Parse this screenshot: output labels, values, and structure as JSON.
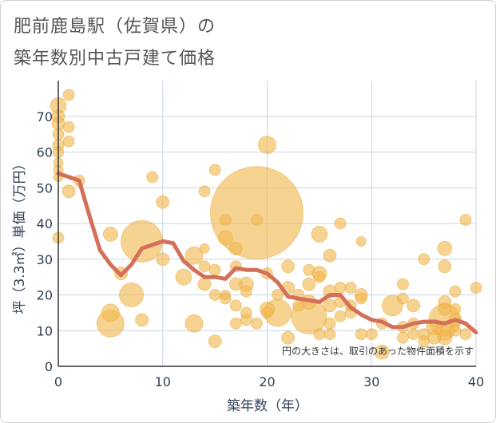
{
  "chart_data": {
    "type": "scatter",
    "title_lines": [
      "肥前鹿島駅（佐賀県）の",
      "築年数別中古戸建て価格"
    ],
    "xlabel": "築年数（年）",
    "ylabel": "坪（3.3㎡）単価（万円）",
    "annotation": "円の大きさは、取引のあった物件面積を示す",
    "xlim": [
      0,
      40
    ],
    "ylim": [
      0,
      80
    ],
    "x_ticks": [
      0,
      10,
      20,
      30,
      40
    ],
    "y_ticks": [
      0,
      10,
      20,
      30,
      40,
      50,
      60,
      70
    ],
    "grid": true,
    "colors": {
      "bubble": "#f2b84f",
      "line": "#d4705a",
      "grid": "#c9d6e3",
      "axis": "#333333"
    },
    "points": [
      {
        "x": 0,
        "y": 73,
        "s": 10
      },
      {
        "x": 0,
        "y": 70,
        "s": 8
      },
      {
        "x": 0,
        "y": 68,
        "s": 8
      },
      {
        "x": 0,
        "y": 65,
        "s": 7
      },
      {
        "x": 0,
        "y": 62,
        "s": 7
      },
      {
        "x": 0,
        "y": 60,
        "s": 7
      },
      {
        "x": 0,
        "y": 57,
        "s": 6
      },
      {
        "x": 0,
        "y": 55,
        "s": 6
      },
      {
        "x": 0,
        "y": 53,
        "s": 6
      },
      {
        "x": 0,
        "y": 36,
        "s": 7
      },
      {
        "x": 1,
        "y": 76,
        "s": 7
      },
      {
        "x": 1,
        "y": 67,
        "s": 7
      },
      {
        "x": 1,
        "y": 63,
        "s": 7
      },
      {
        "x": 1,
        "y": 49,
        "s": 8
      },
      {
        "x": 2,
        "y": 52,
        "s": 7
      },
      {
        "x": 5,
        "y": 37,
        "s": 9
      },
      {
        "x": 5,
        "y": 15,
        "s": 11
      },
      {
        "x": 5,
        "y": 12,
        "s": 17
      },
      {
        "x": 6,
        "y": 26,
        "s": 8
      },
      {
        "x": 7,
        "y": 20,
        "s": 15
      },
      {
        "x": 8,
        "y": 35,
        "s": 26
      },
      {
        "x": 8,
        "y": 13,
        "s": 8
      },
      {
        "x": 9,
        "y": 53,
        "s": 7
      },
      {
        "x": 10,
        "y": 46,
        "s": 8
      },
      {
        "x": 10,
        "y": 30,
        "s": 8
      },
      {
        "x": 12,
        "y": 25,
        "s": 10
      },
      {
        "x": 13,
        "y": 31,
        "s": 11
      },
      {
        "x": 13,
        "y": 12,
        "s": 11
      },
      {
        "x": 14,
        "y": 49,
        "s": 7
      },
      {
        "x": 14,
        "y": 28,
        "s": 7
      },
      {
        "x": 14,
        "y": 23,
        "s": 8
      },
      {
        "x": 14,
        "y": 33,
        "s": 6
      },
      {
        "x": 15,
        "y": 55,
        "s": 7
      },
      {
        "x": 15,
        "y": 27,
        "s": 7
      },
      {
        "x": 15,
        "y": 20,
        "s": 7
      },
      {
        "x": 15,
        "y": 7,
        "s": 8
      },
      {
        "x": 16,
        "y": 41,
        "s": 7
      },
      {
        "x": 16,
        "y": 36,
        "s": 9
      },
      {
        "x": 16,
        "y": 19,
        "s": 7
      },
      {
        "x": 16,
        "y": 20,
        "s": 6
      },
      {
        "x": 17,
        "y": 33,
        "s": 8
      },
      {
        "x": 17,
        "y": 28,
        "s": 7
      },
      {
        "x": 17,
        "y": 23,
        "s": 8
      },
      {
        "x": 17,
        "y": 17,
        "s": 7
      },
      {
        "x": 17,
        "y": 12,
        "s": 7
      },
      {
        "x": 18,
        "y": 23,
        "s": 9
      },
      {
        "x": 18,
        "y": 21,
        "s": 7
      },
      {
        "x": 18,
        "y": 15,
        "s": 7
      },
      {
        "x": 18,
        "y": 13,
        "s": 7
      },
      {
        "x": 19,
        "y": 43,
        "s": 58
      },
      {
        "x": 19,
        "y": 41,
        "s": 7
      },
      {
        "x": 19,
        "y": 12,
        "s": 7
      },
      {
        "x": 20,
        "y": 62,
        "s": 11
      },
      {
        "x": 20,
        "y": 26,
        "s": 7
      },
      {
        "x": 20,
        "y": 16,
        "s": 9
      },
      {
        "x": 20,
        "y": 15,
        "s": 7
      },
      {
        "x": 21,
        "y": 15,
        "s": 17
      },
      {
        "x": 21,
        "y": 20,
        "s": 7
      },
      {
        "x": 22,
        "y": 28,
        "s": 8
      },
      {
        "x": 22,
        "y": 22,
        "s": 8
      },
      {
        "x": 22,
        "y": 8,
        "s": 8
      },
      {
        "x": 23,
        "y": 20,
        "s": 7
      },
      {
        "x": 23,
        "y": 17,
        "s": 7
      },
      {
        "x": 24,
        "y": 27,
        "s": 7
      },
      {
        "x": 24,
        "y": 23,
        "s": 8
      },
      {
        "x": 24,
        "y": 18,
        "s": 9
      },
      {
        "x": 24,
        "y": 14,
        "s": 22
      },
      {
        "x": 25,
        "y": 37,
        "s": 10
      },
      {
        "x": 25,
        "y": 26,
        "s": 9
      },
      {
        "x": 25,
        "y": 25,
        "s": 7
      },
      {
        "x": 25,
        "y": 9,
        "s": 7
      },
      {
        "x": 26,
        "y": 31,
        "s": 8
      },
      {
        "x": 26,
        "y": 21,
        "s": 8
      },
      {
        "x": 26,
        "y": 17,
        "s": 8
      },
      {
        "x": 26,
        "y": 12,
        "s": 7
      },
      {
        "x": 26,
        "y": 9,
        "s": 7
      },
      {
        "x": 27,
        "y": 40,
        "s": 7
      },
      {
        "x": 27,
        "y": 22,
        "s": 7
      },
      {
        "x": 27,
        "y": 18,
        "s": 7
      },
      {
        "x": 27,
        "y": 14,
        "s": 7
      },
      {
        "x": 28,
        "y": 22,
        "s": 7
      },
      {
        "x": 28,
        "y": 17,
        "s": 7
      },
      {
        "x": 28,
        "y": 15,
        "s": 7
      },
      {
        "x": 29,
        "y": 35,
        "s": 6
      },
      {
        "x": 29,
        "y": 20,
        "s": 8
      },
      {
        "x": 29,
        "y": 19,
        "s": 7
      },
      {
        "x": 29,
        "y": 9,
        "s": 7
      },
      {
        "x": 30,
        "y": 9,
        "s": 7
      },
      {
        "x": 31,
        "y": 12,
        "s": 7
      },
      {
        "x": 31,
        "y": 4,
        "s": 9
      },
      {
        "x": 32,
        "y": 17,
        "s": 13
      },
      {
        "x": 33,
        "y": 23,
        "s": 7
      },
      {
        "x": 33,
        "y": 19,
        "s": 7
      },
      {
        "x": 33,
        "y": 11,
        "s": 7
      },
      {
        "x": 33,
        "y": 8,
        "s": 7
      },
      {
        "x": 34,
        "y": 17,
        "s": 8
      },
      {
        "x": 34,
        "y": 12,
        "s": 7
      },
      {
        "x": 34,
        "y": 9,
        "s": 7
      },
      {
        "x": 35,
        "y": 30,
        "s": 7
      },
      {
        "x": 35,
        "y": 9,
        "s": 7
      },
      {
        "x": 35,
        "y": 7,
        "s": 7
      },
      {
        "x": 36,
        "y": 11,
        "s": 10
      },
      {
        "x": 36,
        "y": 8,
        "s": 8
      },
      {
        "x": 37,
        "y": 33,
        "s": 9
      },
      {
        "x": 37,
        "y": 28,
        "s": 8
      },
      {
        "x": 37,
        "y": 18,
        "s": 8
      },
      {
        "x": 37,
        "y": 16,
        "s": 8
      },
      {
        "x": 37,
        "y": 13,
        "s": 20
      },
      {
        "x": 37,
        "y": 10,
        "s": 12
      },
      {
        "x": 37,
        "y": 8,
        "s": 9
      },
      {
        "x": 38,
        "y": 21,
        "s": 7
      },
      {
        "x": 38,
        "y": 16,
        "s": 7
      },
      {
        "x": 38,
        "y": 13,
        "s": 8
      },
      {
        "x": 38,
        "y": 10,
        "s": 7
      },
      {
        "x": 39,
        "y": 41,
        "s": 7
      },
      {
        "x": 39,
        "y": 9,
        "s": 7
      },
      {
        "x": 40,
        "y": 22,
        "s": 7
      }
    ],
    "trend": {
      "x": [
        0,
        1,
        2,
        3,
        4,
        5,
        6,
        7,
        8,
        9,
        10,
        11,
        12,
        13,
        14,
        15,
        16,
        17,
        18,
        19,
        20,
        21,
        22,
        23,
        24,
        25,
        26,
        27,
        28,
        29,
        30,
        31,
        32,
        33,
        34,
        35,
        36,
        37,
        38,
        39,
        40
      ],
      "y": [
        54,
        53,
        52,
        42,
        32.5,
        28.5,
        25.5,
        28.5,
        33,
        34,
        35,
        34.5,
        29.5,
        27,
        25,
        25,
        24.5,
        27.5,
        27,
        27,
        26,
        23.5,
        19.5,
        19,
        18.5,
        18,
        20,
        20,
        16.5,
        14.5,
        13,
        12.5,
        11,
        11,
        12,
        12.5,
        12.5,
        12,
        13,
        12,
        9.5
      ]
    }
  }
}
